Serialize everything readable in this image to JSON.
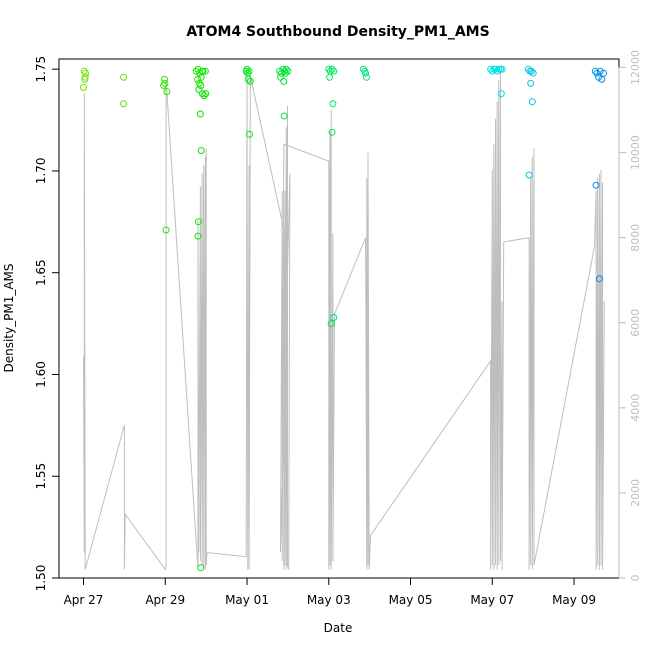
{
  "chart_data": {
    "type": "scatter",
    "title": "ATOM4 Southbound Density_PM1_AMS",
    "xlabel": "Date",
    "ylabel": "Density_PM1_AMS",
    "x_unit": "days since Apr 27 00:00",
    "xlim": [
      -0.6,
      13.1
    ],
    "ylim": [
      1.5,
      1.755
    ],
    "y2lim": [
      0,
      12200
    ],
    "x_ticks": [
      {
        "value": 0,
        "label": "Apr 27"
      },
      {
        "value": 2,
        "label": "Apr 29"
      },
      {
        "value": 4,
        "label": "May 01"
      },
      {
        "value": 6,
        "label": "May 03"
      },
      {
        "value": 8,
        "label": "May 05"
      },
      {
        "value": 10,
        "label": "May 07"
      },
      {
        "value": 12,
        "label": "May 09"
      }
    ],
    "y_ticks": [
      1.5,
      1.55,
      1.6,
      1.65,
      1.7,
      1.75
    ],
    "y_tick_labels": [
      "1.50",
      "1.55",
      "1.60",
      "1.65",
      "1.70",
      "1.75"
    ],
    "y2_ticks": [
      0,
      2000,
      4000,
      6000,
      8000,
      10000,
      12000
    ],
    "y2_tick_labels": [
      "0",
      "2000",
      "4000",
      "6000",
      "8000",
      "10000",
      "12000"
    ],
    "points": [
      {
        "x": 0.02,
        "y": 1.749
      },
      {
        "x": 0.03,
        "y": 1.745
      },
      {
        "x": 0.0,
        "y": 1.741
      },
      {
        "x": 0.05,
        "y": 1.748
      },
      {
        "x": 0.04,
        "y": 1.746
      },
      {
        "x": 0.98,
        "y": 1.746
      },
      {
        "x": 0.98,
        "y": 1.733
      },
      {
        "x": 1.98,
        "y": 1.745
      },
      {
        "x": 1.99,
        "y": 1.743
      },
      {
        "x": 1.96,
        "y": 1.742
      },
      {
        "x": 2.04,
        "y": 1.739
      },
      {
        "x": 2.02,
        "y": 1.671
      },
      {
        "x": 2.76,
        "y": 1.749
      },
      {
        "x": 2.8,
        "y": 1.75
      },
      {
        "x": 2.84,
        "y": 1.748
      },
      {
        "x": 2.88,
        "y": 1.746
      },
      {
        "x": 2.92,
        "y": 1.749
      },
      {
        "x": 2.79,
        "y": 1.745
      },
      {
        "x": 2.83,
        "y": 1.743
      },
      {
        "x": 2.87,
        "y": 1.742
      },
      {
        "x": 2.91,
        "y": 1.738
      },
      {
        "x": 2.95,
        "y": 1.737
      },
      {
        "x": 2.82,
        "y": 1.74
      },
      {
        "x": 2.98,
        "y": 1.749
      },
      {
        "x": 2.99,
        "y": 1.738
      },
      {
        "x": 2.86,
        "y": 1.728
      },
      {
        "x": 2.88,
        "y": 1.71
      },
      {
        "x": 2.81,
        "y": 1.675
      },
      {
        "x": 2.8,
        "y": 1.668
      },
      {
        "x": 2.87,
        "y": 1.505
      },
      {
        "x": 2.9,
        "y": 1.749
      },
      {
        "x": 3.98,
        "y": 1.749
      },
      {
        "x": 4.0,
        "y": 1.75
      },
      {
        "x": 4.02,
        "y": 1.748
      },
      {
        "x": 4.05,
        "y": 1.749
      },
      {
        "x": 4.03,
        "y": 1.745
      },
      {
        "x": 4.08,
        "y": 1.744
      },
      {
        "x": 4.06,
        "y": 1.718
      },
      {
        "x": 4.8,
        "y": 1.749
      },
      {
        "x": 4.84,
        "y": 1.748
      },
      {
        "x": 4.88,
        "y": 1.75
      },
      {
        "x": 4.92,
        "y": 1.749
      },
      {
        "x": 4.96,
        "y": 1.75
      },
      {
        "x": 5.0,
        "y": 1.749
      },
      {
        "x": 4.82,
        "y": 1.746
      },
      {
        "x": 4.9,
        "y": 1.744
      },
      {
        "x": 4.94,
        "y": 1.748
      },
      {
        "x": 4.91,
        "y": 1.727
      },
      {
        "x": 6.0,
        "y": 1.75
      },
      {
        "x": 6.04,
        "y": 1.749
      },
      {
        "x": 6.08,
        "y": 1.75
      },
      {
        "x": 6.12,
        "y": 1.749
      },
      {
        "x": 6.02,
        "y": 1.746
      },
      {
        "x": 6.1,
        "y": 1.733
      },
      {
        "x": 6.08,
        "y": 1.719
      },
      {
        "x": 6.12,
        "y": 1.628
      },
      {
        "x": 6.06,
        "y": 1.625
      },
      {
        "x": 6.85,
        "y": 1.75
      },
      {
        "x": 6.88,
        "y": 1.749
      },
      {
        "x": 6.9,
        "y": 1.748
      },
      {
        "x": 6.92,
        "y": 1.746
      },
      {
        "x": 9.96,
        "y": 1.75
      },
      {
        "x": 10.0,
        "y": 1.749
      },
      {
        "x": 10.04,
        "y": 1.75
      },
      {
        "x": 10.08,
        "y": 1.75
      },
      {
        "x": 10.12,
        "y": 1.749
      },
      {
        "x": 10.16,
        "y": 1.75
      },
      {
        "x": 10.2,
        "y": 1.75
      },
      {
        "x": 10.24,
        "y": 1.75
      },
      {
        "x": 10.22,
        "y": 1.738
      },
      {
        "x": 10.88,
        "y": 1.75
      },
      {
        "x": 10.92,
        "y": 1.749
      },
      {
        "x": 10.96,
        "y": 1.749
      },
      {
        "x": 11.0,
        "y": 1.748
      },
      {
        "x": 10.94,
        "y": 1.743
      },
      {
        "x": 10.98,
        "y": 1.734
      },
      {
        "x": 10.9,
        "y": 1.698
      },
      {
        "x": 12.52,
        "y": 1.749
      },
      {
        "x": 12.56,
        "y": 1.748
      },
      {
        "x": 12.6,
        "y": 1.746
      },
      {
        "x": 12.64,
        "y": 1.749
      },
      {
        "x": 12.68,
        "y": 1.745
      },
      {
        "x": 12.72,
        "y": 1.748
      },
      {
        "x": 12.54,
        "y": 1.693
      },
      {
        "x": 12.62,
        "y": 1.647
      }
    ],
    "count_series": {
      "name": "count (right axis)",
      "color": "#bebebe",
      "x": [
        0.0,
        0.02,
        0.02,
        0.04,
        1.0,
        1.0,
        1.02,
        2.0,
        2.02,
        2.02,
        2.8,
        2.8,
        2.82,
        2.86,
        2.86,
        2.9,
        2.9,
        2.94,
        2.94,
        2.98,
        2.98,
        3.0,
        3.0,
        3.02,
        3.98,
        4.0,
        4.02,
        4.02,
        4.05,
        4.05,
        4.08,
        4.9,
        4.9,
        4.93,
        4.93,
        4.96,
        4.96,
        4.99,
        4.99,
        5.02,
        5.05,
        4.82,
        4.86,
        4.86,
        4.9,
        6.0,
        6.0,
        6.03,
        6.03,
        6.06,
        6.06,
        6.1,
        6.1,
        6.14,
        6.9,
        6.93,
        6.93,
        6.96,
        6.96,
        6.99,
        7.02,
        9.96,
        9.96,
        10.0,
        10.0,
        10.04,
        10.04,
        10.08,
        10.08,
        10.12,
        10.12,
        10.16,
        10.16,
        10.2,
        10.2,
        10.24,
        10.24,
        10.28,
        10.9,
        10.9,
        10.94,
        10.94,
        10.98,
        10.98,
        11.02,
        11.02,
        12.5,
        12.54,
        12.54,
        12.58,
        12.58,
        12.62,
        12.62,
        12.66,
        12.66,
        12.7,
        12.7,
        12.74
      ],
      "y": [
        5200,
        600,
        11400,
        200,
        3600,
        200,
        1500,
        200,
        300,
        11700,
        200,
        8400,
        600,
        9200,
        400,
        9500,
        300,
        9700,
        200,
        9900,
        200,
        10100,
        300,
        600,
        500,
        11900,
        200,
        600,
        9700,
        200,
        11800,
        8200,
        200,
        9100,
        300,
        10600,
        200,
        11100,
        300,
        200,
        9500,
        600,
        9100,
        400,
        10200,
        9800,
        200,
        10500,
        300,
        11000,
        200,
        8100,
        400,
        6200,
        8000,
        200,
        9400,
        300,
        10000,
        200,
        1000,
        5100,
        200,
        9600,
        300,
        10200,
        200,
        10800,
        300,
        11200,
        200,
        11700,
        300,
        11900,
        400,
        6500,
        200,
        7900,
        8000,
        200,
        9400,
        300,
        9900,
        200,
        10100,
        300,
        7800,
        9100,
        200,
        9400,
        300,
        9500,
        200,
        9600,
        300,
        9300,
        200,
        6500
      ]
    }
  }
}
